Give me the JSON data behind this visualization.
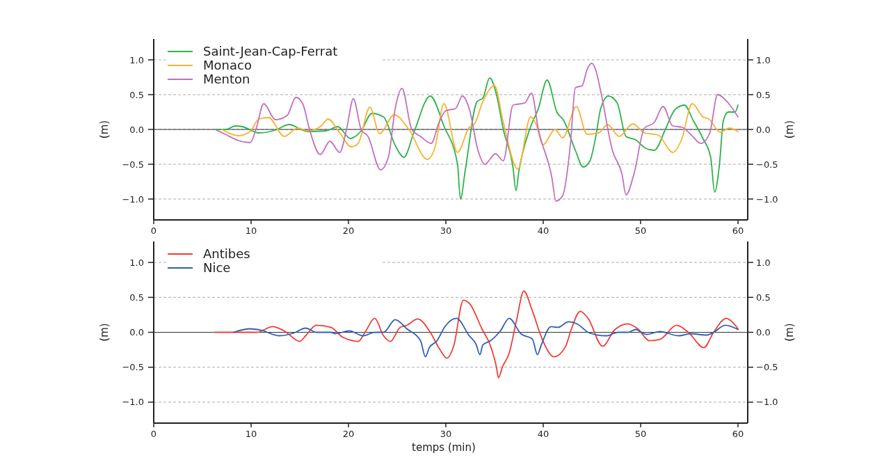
{
  "chart_data": [
    {
      "type": "line",
      "ylabel": "(m)",
      "y2label": "(m)",
      "xlim": [
        0,
        61
      ],
      "xticks": [
        0,
        10,
        20,
        30,
        40,
        50,
        60
      ],
      "ylim": [
        -1.3,
        1.3
      ],
      "yticks": [
        {
          "value": -1,
          "label": "−1.0"
        },
        {
          "value": -0.5,
          "label": "−0.5"
        },
        {
          "value": 0,
          "label": "0.0"
        },
        {
          "value": 0.5,
          "label": "0.5"
        },
        {
          "value": 1,
          "label": "1.0"
        }
      ],
      "y2lim": [
        -1.3,
        1.3
      ],
      "y2ticks": [
        {
          "value": -1,
          "label": "−1.0"
        },
        {
          "value": -0.5,
          "label": "−0.5"
        },
        {
          "value": 0,
          "label": "0.0"
        },
        {
          "value": 0.5,
          "label": "0.5"
        },
        {
          "value": 1,
          "label": "1.0"
        }
      ],
      "grid": "y",
      "legend": "top left",
      "ref_lines": [
        {
          "axis": "y",
          "value": 0,
          "color": "#333333",
          "line_style": "solid"
        }
      ],
      "series": [
        {
          "name": "Saint-Jean-Cap-Ferrat",
          "color": "#2db34a",
          "x": [
            6.3,
            7.4,
            8.4,
            9.1,
            10.8,
            12.5,
            13.9,
            15.8,
            17.7,
            18.9,
            20.2,
            21.3,
            22.4,
            23.6,
            24.8,
            25.7,
            26.7,
            28.4,
            29.8,
            31.2,
            31.5,
            32,
            33.2,
            33.8,
            34.5,
            35.2,
            35.9,
            36.9,
            37.2,
            37.5,
            38.6,
            39.5,
            40.4,
            41.4,
            42.1,
            43.3,
            44.1,
            44.8,
            45.4,
            45.9,
            46.7,
            47.6,
            48.5,
            49.5,
            50.5,
            51.4,
            52.6,
            53.5,
            54.5,
            55.4,
            56.4,
            57.2,
            57.6,
            58.1,
            58.5,
            59,
            59.7,
            60
          ],
          "values": [
            0,
            0,
            0.05,
            0.04,
            -0.05,
            -0.01,
            0.07,
            -0.03,
            -0.02,
            0.04,
            -0.13,
            -0.02,
            0.23,
            0.18,
            -0.23,
            -0.4,
            -0.05,
            0.48,
            0.05,
            -0.5,
            -1,
            -0.58,
            0.4,
            0.45,
            0.74,
            0.5,
            0,
            -0.55,
            -0.88,
            -0.6,
            0,
            0.3,
            0.71,
            0.25,
            0.13,
            -0.3,
            -0.54,
            -0.45,
            -0.1,
            0.3,
            0.48,
            0.38,
            -0.1,
            -0.15,
            -0.27,
            -0.3,
            0.02,
            0.28,
            0.35,
            0.13,
            -0.13,
            -0.4,
            -0.9,
            -0.5,
            0.13,
            0.25,
            0.25,
            0.35
          ]
        },
        {
          "name": "Monaco",
          "color": "#f9b233",
          "x": [
            7,
            8.7,
            9.9,
            10.8,
            11.8,
            13.4,
            14.8,
            15.8,
            17.2,
            17.9,
            19.1,
            20.3,
            21,
            22.2,
            23.2,
            24.7,
            26.2,
            28.1,
            28.9,
            29.8,
            31.2,
            32.4,
            32.9,
            33.8,
            35,
            35.9,
            37.4,
            38.7,
            39.2,
            40,
            41.2,
            42,
            43.4,
            44.5,
            45.7,
            46.6,
            47.8,
            49.2,
            50.4,
            51.8,
            53.3,
            54.2,
            55.3,
            56.4,
            57,
            58.2,
            59.1,
            60
          ],
          "values": [
            0,
            -0.09,
            -0.03,
            0.15,
            0.17,
            -0.1,
            0.02,
            -0.02,
            0.05,
            0.15,
            -0.05,
            -0.25,
            -0.2,
            0.32,
            -0.06,
            0.21,
            0,
            -0.43,
            -0.25,
            0.37,
            -0.33,
            0.03,
            0.07,
            0.4,
            0.63,
            0.1,
            -0.57,
            0.18,
            0.1,
            -0.22,
            0,
            -0.12,
            0.33,
            -0.07,
            -0.05,
            0.07,
            -0.1,
            0.08,
            -0.05,
            -0.08,
            -0.33,
            -0.15,
            0.37,
            0.18,
            0.15,
            -0.04,
            0.02,
            -0.03
          ]
        },
        {
          "name": "Menton",
          "color": "#c36fbf",
          "x": [
            6.3,
            7.5,
            8.7,
            9.9,
            10.5,
            11.3,
            12.5,
            13.7,
            14.6,
            15.3,
            16,
            17.1,
            18.1,
            19.1,
            19.8,
            20.5,
            21.3,
            22,
            23.3,
            24.1,
            24.8,
            25.5,
            26.5,
            27.4,
            28.5,
            29.3,
            30,
            31,
            31.7,
            32.4,
            33.3,
            34,
            35.1,
            35.9,
            36.9,
            38.1,
            38.8,
            39.5,
            40.9,
            41.3,
            42,
            42.8,
            43.3,
            44,
            44.5,
            45,
            45.4,
            45.9,
            47.1,
            48.1,
            48.5,
            49.3,
            50.4,
            51.4,
            52.3,
            53.3,
            54.3,
            55.2,
            56.2,
            57.1,
            57.9,
            59,
            60
          ],
          "values": [
            0,
            -0.08,
            -0.16,
            -0.19,
            0,
            0.37,
            0.14,
            0.2,
            0.46,
            0.37,
            0,
            -0.36,
            -0.17,
            -0.33,
            0,
            0.44,
            0,
            -0.1,
            -0.58,
            -0.4,
            0.3,
            0.59,
            0,
            -0.1,
            -0.2,
            0.1,
            0.27,
            0.3,
            0.48,
            0.3,
            -0.3,
            -0.5,
            -0.35,
            -0.45,
            0.35,
            0.38,
            0.52,
            0,
            -0.7,
            -1.03,
            -0.95,
            -0.2,
            0.6,
            0.63,
            0.86,
            0.95,
            0.85,
            0.55,
            -0.3,
            -0.65,
            -0.94,
            -0.65,
            0.02,
            0.1,
            0.33,
            0.05,
            0.03,
            -0.08,
            -0.2,
            -0.05,
            0.5,
            0.38,
            0.18
          ]
        }
      ]
    },
    {
      "type": "line",
      "ylabel": "(m)",
      "y2label": "(m)",
      "xlabel": "temps (min)",
      "xlim": [
        0,
        61
      ],
      "xticks": [
        0,
        10,
        20,
        30,
        40,
        50,
        60
      ],
      "ylim": [
        -1.3,
        1.3
      ],
      "yticks": [
        {
          "value": -1,
          "label": "−1.0"
        },
        {
          "value": -0.5,
          "label": "−0.5"
        },
        {
          "value": 0,
          "label": "0.0"
        },
        {
          "value": 0.5,
          "label": "0.5"
        },
        {
          "value": 1,
          "label": "1.0"
        }
      ],
      "y2lim": [
        -1.3,
        1.3
      ],
      "y2ticks": [
        {
          "value": -1,
          "label": "−1.0"
        },
        {
          "value": -0.5,
          "label": "−0.5"
        },
        {
          "value": 0,
          "label": "0.0"
        },
        {
          "value": 0.5,
          "label": "0.5"
        },
        {
          "value": 1,
          "label": "1.0"
        }
      ],
      "grid": "y",
      "legend": "top left",
      "ref_lines": [
        {
          "axis": "y",
          "value": 0,
          "color": "#333333",
          "line_style": "solid"
        }
      ],
      "series": [
        {
          "name": "Antibes",
          "color": "#ef3e36",
          "x": [
            6.3,
            10.6,
            12.2,
            13.4,
            15,
            15.6,
            16.7,
            18.2,
            19.4,
            21,
            21.7,
            22.7,
            23.6,
            24.3,
            25.3,
            26,
            27.1,
            28.4,
            29.4,
            30.1,
            30.8,
            31.8,
            32.5,
            33.7,
            34.6,
            35.2,
            35.4,
            35.8,
            36.5,
            37.3,
            38,
            38.9,
            39.9,
            41.1,
            42.3,
            42.9,
            43.8,
            44.6,
            46.1,
            47.3,
            48.7,
            49.7,
            50.9,
            52,
            53.7,
            54.9,
            56.5,
            57.5,
            58.8,
            59.6,
            60
          ],
          "values": [
            0,
            0,
            0.08,
            0.02,
            -0.13,
            -0.05,
            0.1,
            0.07,
            -0.07,
            -0.13,
            0,
            0.2,
            -0.05,
            -0.13,
            0.07,
            0.1,
            0.19,
            0,
            -0.25,
            -0.37,
            -0.2,
            0.46,
            0.4,
            0.05,
            -0.2,
            -0.5,
            -0.65,
            -0.5,
            -0.3,
            0.2,
            0.59,
            0.3,
            -0.1,
            -0.35,
            -0.2,
            0.05,
            0.3,
            0.2,
            -0.2,
            0.03,
            0.12,
            0.05,
            -0.12,
            -0.1,
            0.1,
            0,
            -0.22,
            0,
            0.2,
            0.12,
            0.05
          ]
        },
        {
          "name": "Nice",
          "color": "#2f5fb3",
          "x": [
            8.2,
            9.9,
            11,
            12.9,
            14.4,
            15.6,
            16.7,
            18.2,
            18.6,
            20.1,
            21.5,
            22.7,
            23.6,
            24.8,
            26,
            27.4,
            27.9,
            28.3,
            29.1,
            29.9,
            31.1,
            32.4,
            33.1,
            33.5,
            33.8,
            34.6,
            35.6,
            36.5,
            37.7,
            38.9,
            39.4,
            39.8,
            40.8,
            41.5,
            42.6,
            43.5,
            44.6,
            45.6,
            46.5,
            47.7,
            48.7,
            49.5,
            50.6,
            52,
            53.9,
            55.1,
            56.8,
            57.5,
            58.7,
            60
          ],
          "values": [
            0,
            0.05,
            0.03,
            -0.05,
            -0.01,
            0.06,
            0,
            0,
            -0.02,
            0.02,
            -0.05,
            0,
            0,
            0.18,
            0.05,
            -0.12,
            -0.35,
            -0.22,
            -0.12,
            0.08,
            0.2,
            -0.05,
            -0.17,
            -0.32,
            -0.18,
            -0.12,
            0.02,
            0.2,
            -0.02,
            -0.1,
            -0.32,
            -0.18,
            0.08,
            0.07,
            0.15,
            0.12,
            0,
            -0.04,
            -0.05,
            0,
            0,
            0.04,
            -0.03,
            0.01,
            -0.05,
            -0.02,
            -0.04,
            0,
            0.1,
            0.04
          ]
        }
      ]
    }
  ]
}
